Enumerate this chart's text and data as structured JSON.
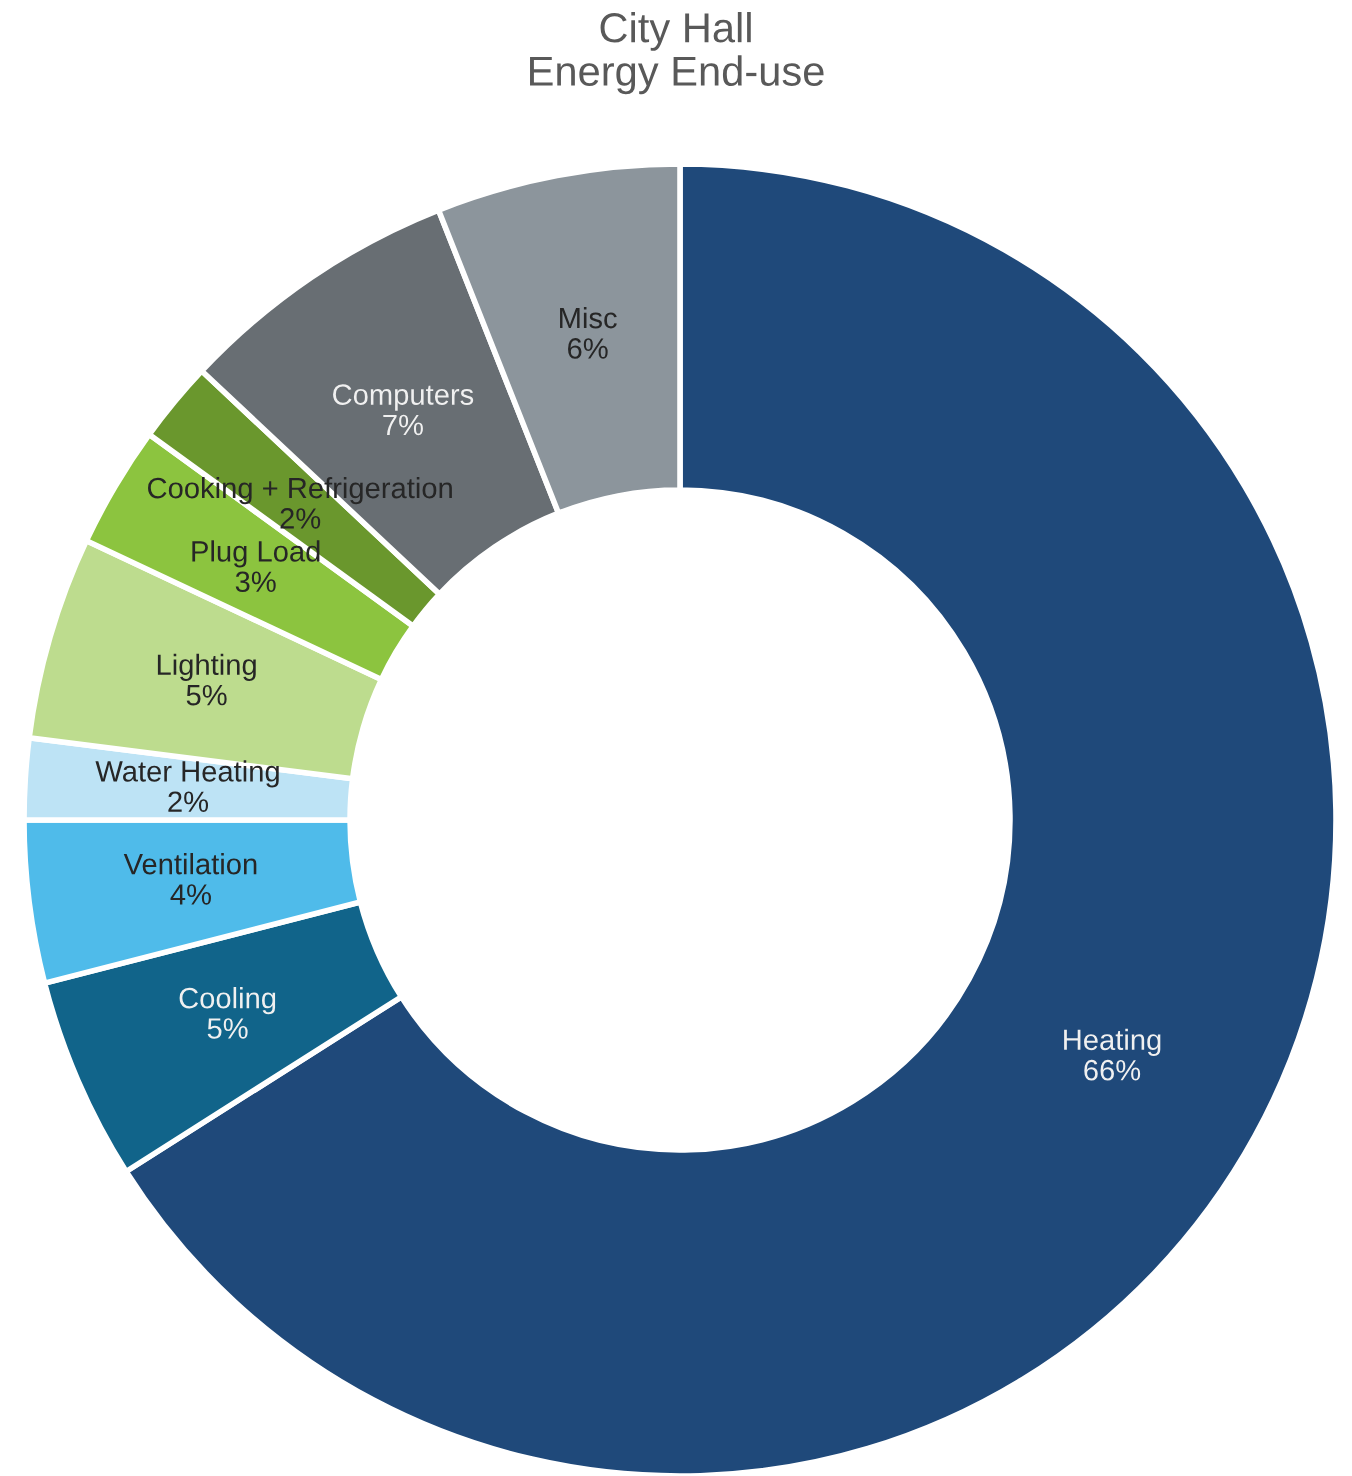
{
  "chart_data": {
    "type": "donut",
    "title": "City Hall\nEnergy End-use",
    "categories": [
      "Heating",
      "Cooling",
      "Ventilation",
      "Water Heating",
      "Lighting",
      "Plug Load",
      "Cooking + Refrigeration",
      "Computers",
      "Misc"
    ],
    "values": [
      66,
      5,
      4,
      2,
      5,
      3,
      2,
      7,
      6
    ],
    "value_labels": [
      "66%",
      "5%",
      "4%",
      "2%",
      "5%",
      "3%",
      "2%",
      "7%",
      "6%"
    ],
    "colors": [
      "#1f497a",
      "#11648a",
      "#4fbbea",
      "#bde3f5",
      "#bddc8e",
      "#8cc43f",
      "#6a972d",
      "#686e73",
      "#8c959c"
    ],
    "legend": false
  }
}
